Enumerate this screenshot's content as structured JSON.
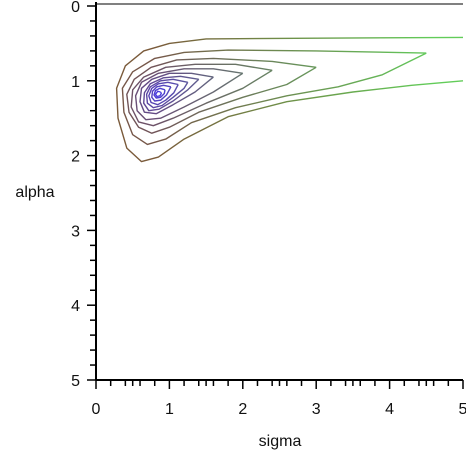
{
  "chart_data": {
    "type": "contour",
    "title": "",
    "xlabel": "sigma",
    "ylabel": "alpha",
    "xlim": [
      0,
      5
    ],
    "ylim": [
      0,
      5
    ],
    "y_inverted": true,
    "grid": false,
    "legend": "none",
    "x_ticks": [
      "0",
      "1",
      "2",
      "3",
      "4",
      "5"
    ],
    "y_ticks": [
      "0",
      "1",
      "2",
      "3",
      "4",
      "5"
    ],
    "peak": {
      "sigma": 0.85,
      "alpha": 1.2
    },
    "color_low": "#7a5a3a",
    "color_high": "#4a3ae0",
    "color_tail": "#5ee05e",
    "contours": [
      {
        "level": 1,
        "points": [
          [
            5.0,
            0.42
          ],
          [
            3.0,
            0.43
          ],
          [
            1.5,
            0.44
          ],
          [
            1.0,
            0.5
          ],
          [
            0.65,
            0.6
          ],
          [
            0.4,
            0.8
          ],
          [
            0.28,
            1.1
          ],
          [
            0.3,
            1.5
          ],
          [
            0.42,
            1.9
          ],
          [
            0.62,
            2.08
          ],
          [
            0.85,
            2.02
          ],
          [
            1.2,
            1.78
          ],
          [
            1.8,
            1.48
          ],
          [
            2.6,
            1.28
          ],
          [
            3.5,
            1.15
          ],
          [
            4.3,
            1.06
          ],
          [
            5.0,
            1.0
          ]
        ]
      },
      {
        "level": 2,
        "points": [
          [
            4.5,
            0.63
          ],
          [
            3.0,
            0.6
          ],
          [
            1.8,
            0.59
          ],
          [
            1.2,
            0.62
          ],
          [
            0.8,
            0.7
          ],
          [
            0.5,
            0.88
          ],
          [
            0.36,
            1.1
          ],
          [
            0.38,
            1.42
          ],
          [
            0.5,
            1.72
          ],
          [
            0.7,
            1.85
          ],
          [
            0.95,
            1.78
          ],
          [
            1.3,
            1.56
          ],
          [
            1.9,
            1.36
          ],
          [
            2.6,
            1.2
          ],
          [
            3.3,
            1.08
          ],
          [
            3.9,
            0.92
          ],
          [
            4.5,
            0.63
          ]
        ]
      },
      {
        "level": 3,
        "points": [
          [
            3.0,
            0.82
          ],
          [
            2.4,
            0.74
          ],
          [
            1.6,
            0.7
          ],
          [
            1.1,
            0.72
          ],
          [
            0.75,
            0.82
          ],
          [
            0.52,
            0.98
          ],
          [
            0.42,
            1.18
          ],
          [
            0.45,
            1.42
          ],
          [
            0.58,
            1.62
          ],
          [
            0.76,
            1.7
          ],
          [
            1.0,
            1.62
          ],
          [
            1.4,
            1.42
          ],
          [
            2.0,
            1.22
          ],
          [
            2.6,
            1.05
          ],
          [
            3.0,
            0.82
          ]
        ]
      },
      {
        "level": 4,
        "points": [
          [
            2.4,
            0.86
          ],
          [
            1.9,
            0.78
          ],
          [
            1.35,
            0.78
          ],
          [
            0.95,
            0.82
          ],
          [
            0.65,
            0.95
          ],
          [
            0.5,
            1.12
          ],
          [
            0.48,
            1.35
          ],
          [
            0.58,
            1.55
          ],
          [
            0.78,
            1.6
          ],
          [
            1.05,
            1.5
          ],
          [
            1.5,
            1.3
          ],
          [
            2.0,
            1.1
          ],
          [
            2.4,
            0.86
          ]
        ]
      },
      {
        "level": 5,
        "points": [
          [
            2.0,
            0.9
          ],
          [
            1.6,
            0.84
          ],
          [
            1.2,
            0.84
          ],
          [
            0.85,
            0.9
          ],
          [
            0.62,
            1.02
          ],
          [
            0.54,
            1.2
          ],
          [
            0.56,
            1.4
          ],
          [
            0.68,
            1.52
          ],
          [
            0.88,
            1.5
          ],
          [
            1.2,
            1.35
          ],
          [
            1.6,
            1.15
          ],
          [
            2.0,
            0.9
          ]
        ]
      },
      {
        "level": 6,
        "points": [
          [
            1.6,
            0.95
          ],
          [
            1.3,
            0.9
          ],
          [
            1.0,
            0.9
          ],
          [
            0.76,
            0.98
          ],
          [
            0.62,
            1.1
          ],
          [
            0.6,
            1.28
          ],
          [
            0.66,
            1.42
          ],
          [
            0.82,
            1.44
          ],
          [
            1.05,
            1.32
          ],
          [
            1.35,
            1.15
          ],
          [
            1.6,
            0.95
          ]
        ]
      },
      {
        "level": 7,
        "points": [
          [
            1.4,
            0.98
          ],
          [
            1.15,
            0.94
          ],
          [
            0.92,
            0.96
          ],
          [
            0.74,
            1.04
          ],
          [
            0.66,
            1.16
          ],
          [
            0.65,
            1.3
          ],
          [
            0.72,
            1.4
          ],
          [
            0.86,
            1.38
          ],
          [
            1.05,
            1.27
          ],
          [
            1.25,
            1.12
          ],
          [
            1.4,
            0.98
          ]
        ]
      },
      {
        "level": 8,
        "points": [
          [
            1.25,
            1.02
          ],
          [
            1.05,
            0.98
          ],
          [
            0.88,
            1.0
          ],
          [
            0.74,
            1.08
          ],
          [
            0.69,
            1.18
          ],
          [
            0.7,
            1.3
          ],
          [
            0.78,
            1.36
          ],
          [
            0.9,
            1.33
          ],
          [
            1.05,
            1.22
          ],
          [
            1.2,
            1.1
          ],
          [
            1.25,
            1.02
          ]
        ]
      },
      {
        "level": 9,
        "points": [
          [
            1.12,
            1.05
          ],
          [
            0.98,
            1.02
          ],
          [
            0.85,
            1.04
          ],
          [
            0.76,
            1.1
          ],
          [
            0.72,
            1.2
          ],
          [
            0.75,
            1.29
          ],
          [
            0.84,
            1.32
          ],
          [
            0.95,
            1.26
          ],
          [
            1.06,
            1.16
          ],
          [
            1.12,
            1.05
          ]
        ]
      },
      {
        "level": 10,
        "points": [
          [
            1.02,
            1.08
          ],
          [
            0.92,
            1.06
          ],
          [
            0.83,
            1.08
          ],
          [
            0.77,
            1.14
          ],
          [
            0.76,
            1.22
          ],
          [
            0.8,
            1.27
          ],
          [
            0.88,
            1.26
          ],
          [
            0.96,
            1.19
          ],
          [
            1.02,
            1.08
          ]
        ]
      },
      {
        "level": 11,
        "points": [
          [
            0.94,
            1.12
          ],
          [
            0.87,
            1.1
          ],
          [
            0.81,
            1.13
          ],
          [
            0.79,
            1.19
          ],
          [
            0.82,
            1.23
          ],
          [
            0.88,
            1.22
          ],
          [
            0.93,
            1.17
          ],
          [
            0.94,
            1.12
          ]
        ]
      },
      {
        "level": 12,
        "points": [
          [
            0.88,
            1.15
          ],
          [
            0.84,
            1.14
          ],
          [
            0.81,
            1.18
          ],
          [
            0.83,
            1.21
          ],
          [
            0.87,
            1.2
          ],
          [
            0.89,
            1.17
          ],
          [
            0.88,
            1.15
          ]
        ]
      }
    ]
  }
}
